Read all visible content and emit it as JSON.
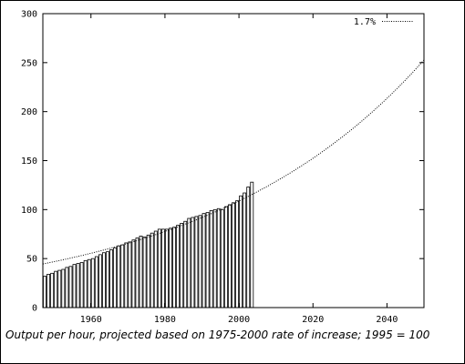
{
  "caption": "Output per hour, projected based on 1975-2000 rate of increase; 1995 = 100",
  "chart_data": {
    "type": "bar",
    "xlim": [
      1947,
      2050
    ],
    "ylim": [
      0,
      300
    ],
    "x_ticks": [
      1960,
      1980,
      2000,
      2020,
      2040
    ],
    "y_ticks": [
      0,
      50,
      100,
      150,
      200,
      250,
      300
    ],
    "grid": false,
    "legend": {
      "position": "top-right",
      "entries": [
        "1.7%"
      ]
    },
    "series": [
      {
        "kind": "bar",
        "x": [
          1947,
          1948,
          1949,
          1950,
          1951,
          1952,
          1953,
          1954,
          1955,
          1956,
          1957,
          1958,
          1959,
          1960,
          1961,
          1962,
          1963,
          1964,
          1965,
          1966,
          1967,
          1968,
          1969,
          1970,
          1971,
          1972,
          1973,
          1974,
          1975,
          1976,
          1977,
          1978,
          1979,
          1980,
          1981,
          1982,
          1983,
          1984,
          1985,
          1986,
          1987,
          1988,
          1989,
          1990,
          1991,
          1992,
          1993,
          1994,
          1995,
          1996,
          1997,
          1998,
          1999,
          2000,
          2001,
          2002,
          2003
        ],
        "values": [
          32,
          34,
          35,
          37,
          38,
          39,
          41,
          42,
          44,
          45,
          46,
          48,
          49,
          50,
          52,
          54,
          56,
          57,
          59,
          61,
          63,
          64,
          66,
          67,
          69,
          71,
          73,
          72,
          74,
          76,
          78,
          80,
          80,
          80,
          81,
          82,
          84,
          86,
          88,
          91,
          92,
          93,
          94,
          96,
          97,
          99,
          100,
          101,
          100,
          103,
          105,
          107,
          109,
          114,
          117,
          123,
          128
        ]
      },
      {
        "kind": "line",
        "name": "1.7%",
        "style": "dotted",
        "growth_rate": 0.017,
        "base_year": 1995,
        "base_value": 100,
        "x_range": [
          1947,
          2050
        ]
      }
    ]
  }
}
